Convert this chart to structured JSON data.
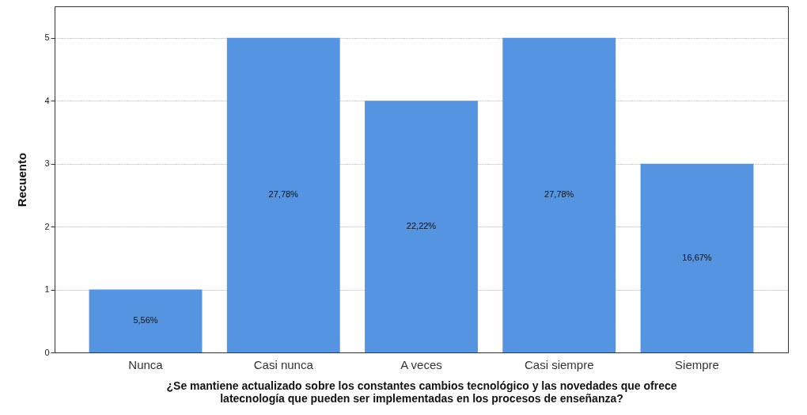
{
  "chart_data": {
    "type": "bar",
    "xlabel": "¿Se mantiene actualizado sobre los constantes cambios tecnológico y las novedades que ofrece\nlatecnología que pueden ser implementadas en los procesos de enseñanza?",
    "ylabel": "Recuento",
    "categories": [
      "Nunca",
      "Casi nunca",
      "A veces",
      "Casi siempre",
      "Siempre"
    ],
    "values": [
      1,
      5,
      4,
      5,
      3
    ],
    "color": "#5594e0",
    "annotations": [
      "5,56%",
      "27,78%",
      "22,22%",
      "27,78%",
      "16,67%"
    ],
    "ylim": [
      0,
      5.5
    ],
    "yticks": [
      0,
      1,
      2,
      3,
      4,
      5
    ],
    "grid": "y"
  }
}
